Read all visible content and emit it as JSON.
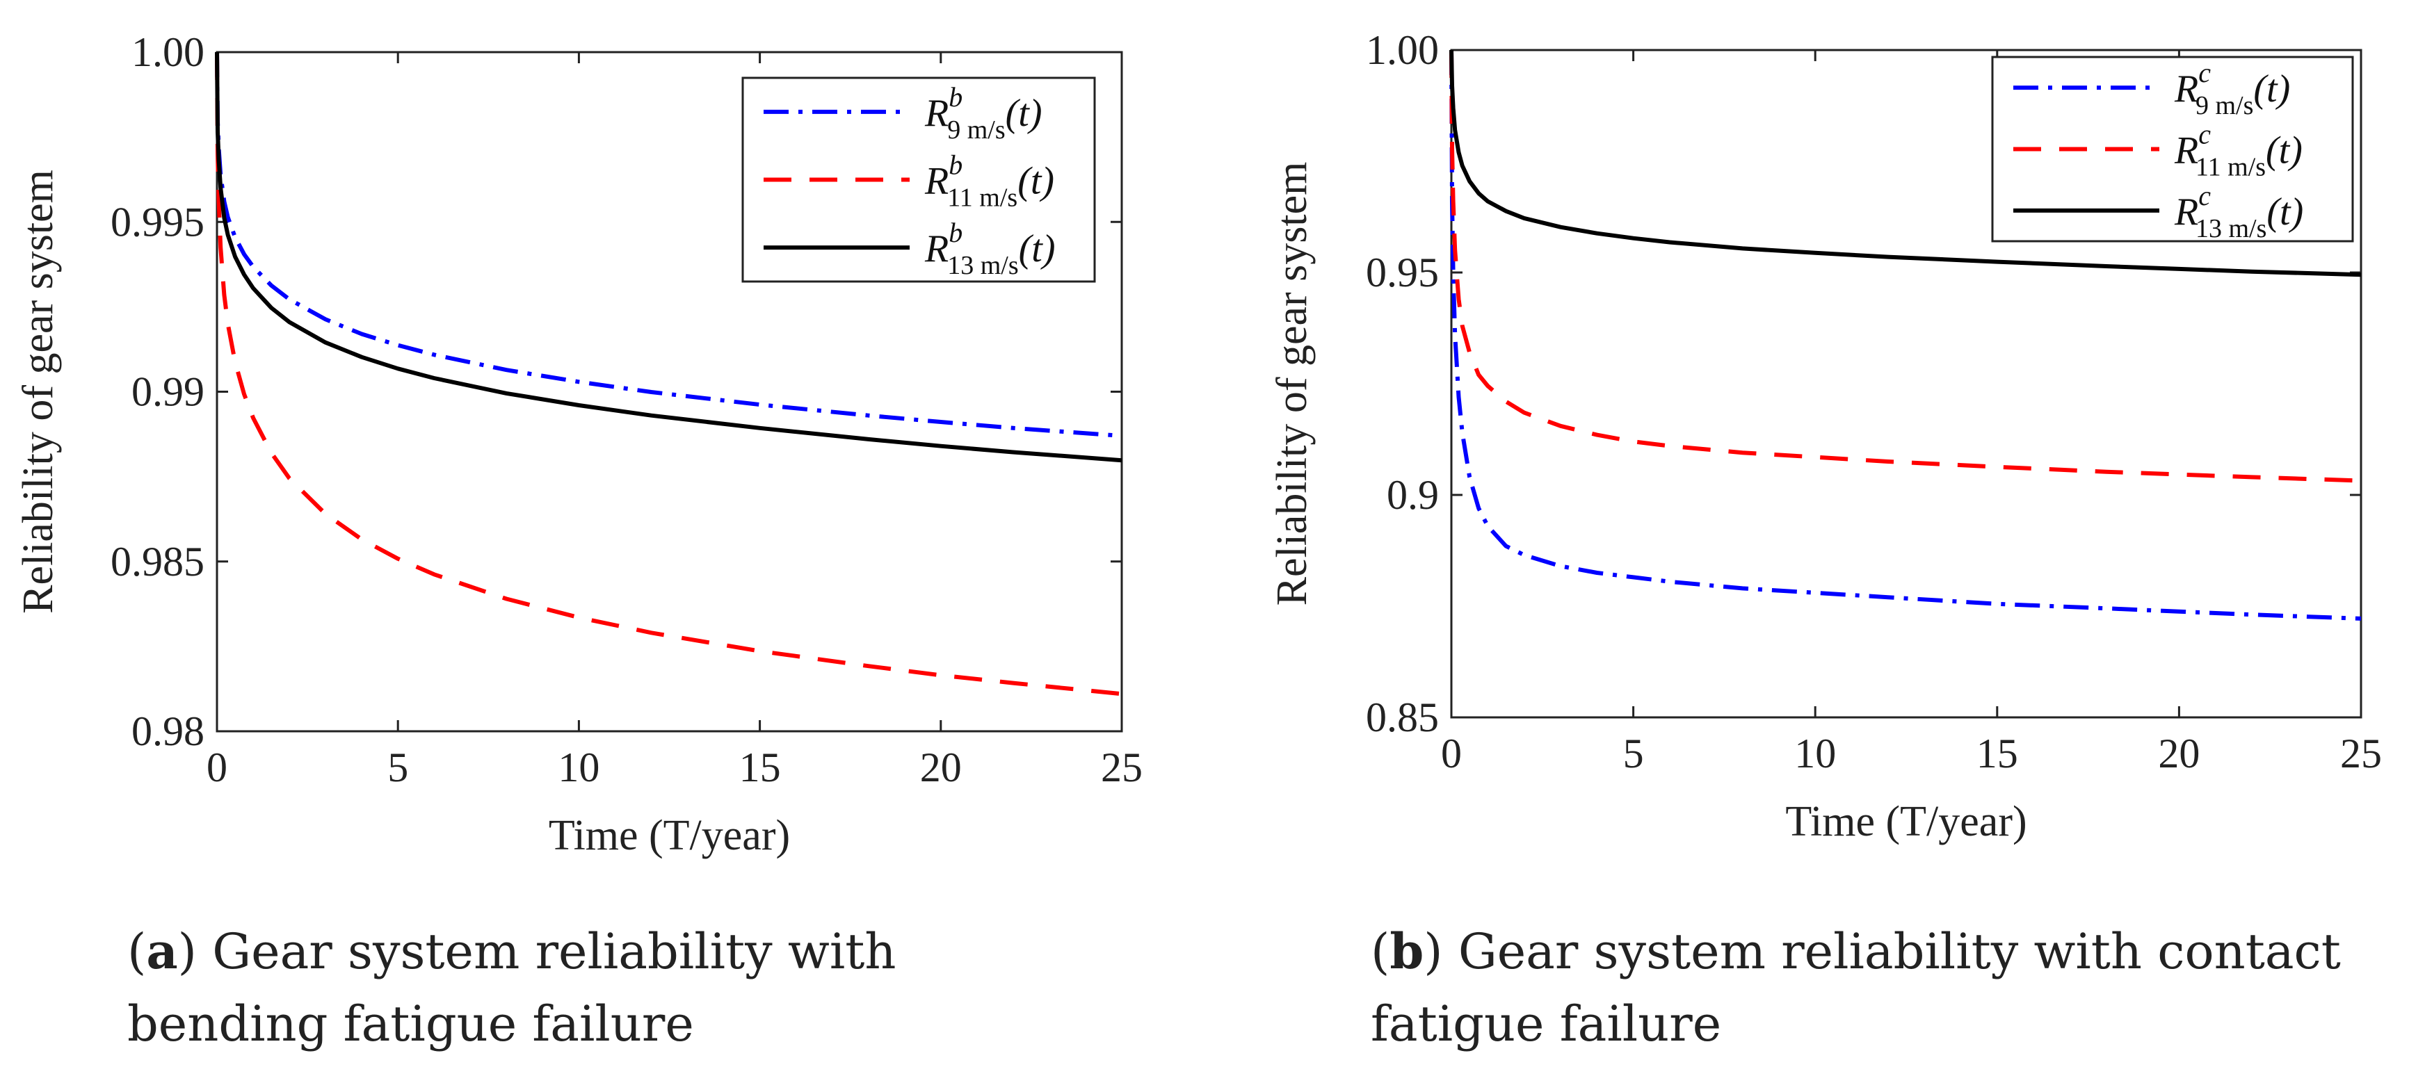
{
  "chart_data": [
    {
      "type": "line",
      "panel": "a",
      "caption_label": "a",
      "caption_text": "Gear system reliability with bending fatigue failure",
      "xlabel": "Time (T/year)",
      "ylabel": "Reliability of gear system",
      "xlim": [
        0,
        25
      ],
      "ylim": [
        0.98,
        1.0
      ],
      "xticks": [
        "0",
        "5",
        "10",
        "15",
        "20",
        "25"
      ],
      "yticks": [
        "0.98",
        "0.985",
        "0.99",
        "0.995",
        "1.00"
      ],
      "legend_position": "top-right",
      "x": [
        0,
        0.02,
        0.05,
        0.1,
        0.2,
        0.3,
        0.5,
        0.75,
        1,
        1.5,
        2,
        3,
        4,
        5,
        6,
        8,
        10,
        12,
        15,
        18,
        20,
        22,
        25
      ],
      "series": [
        {
          "name": "R^b_{9 m/s}(t)",
          "base": "R",
          "sup": "b",
          "sub": "9 m/s",
          "arg": "(t)",
          "color": "#0000ff",
          "dash": "36,14,6,14",
          "values": [
            1.0,
            0.99795,
            0.99715,
            0.99638,
            0.9956,
            0.99514,
            0.99455,
            0.99405,
            0.99368,
            0.99313,
            0.99272,
            0.99213,
            0.9917,
            0.99137,
            0.99109,
            0.99064,
            0.99029,
            0.98999,
            0.98962,
            0.9893,
            0.98911,
            0.98893,
            0.9887
          ]
        },
        {
          "name": "R^b_{11 m/s}(t)",
          "base": "R",
          "sup": "b",
          "sub": "11 m/s",
          "arg": "(t)",
          "color": "#ff0000",
          "dash": "40,26",
          "values": [
            1.0,
            0.997,
            0.9956,
            0.99425,
            0.99285,
            0.992,
            0.99088,
            0.98993,
            0.98923,
            0.9882,
            0.98745,
            0.9864,
            0.98565,
            0.98508,
            0.98462,
            0.9839,
            0.98335,
            0.9829,
            0.98236,
            0.98192,
            0.98165,
            0.98142,
            0.9811
          ]
        },
        {
          "name": "R^b_{13 m/s}(t)",
          "base": "R",
          "sup": "b",
          "sub": "13 m/s",
          "arg": "(t)",
          "color": "#000000",
          "dash": "",
          "values": [
            1.0,
            0.99765,
            0.9968,
            0.996,
            0.99512,
            0.99462,
            0.99398,
            0.99345,
            0.99305,
            0.99247,
            0.99205,
            0.99145,
            0.99102,
            0.99068,
            0.9904,
            0.98995,
            0.9896,
            0.9893,
            0.98893,
            0.9886,
            0.9884,
            0.98822,
            0.98798
          ]
        }
      ]
    },
    {
      "type": "line",
      "panel": "b",
      "caption_label": "b",
      "caption_text": "Gear system reliability with contact fatigue failure",
      "xlabel": "Time (T/year)",
      "ylabel": "Reliability of gear system",
      "xlim": [
        0,
        25
      ],
      "ylim": [
        0.85,
        1.0
      ],
      "xticks": [
        "0",
        "5",
        "10",
        "15",
        "20",
        "25"
      ],
      "yticks": [
        "0.85",
        "0.9",
        "0.95",
        "1.00"
      ],
      "legend_position": "top-right",
      "x": [
        0,
        0.02,
        0.05,
        0.1,
        0.2,
        0.3,
        0.5,
        0.75,
        1,
        1.5,
        2,
        3,
        4,
        5,
        6,
        8,
        10,
        12,
        15,
        18,
        20,
        22,
        25
      ],
      "series": [
        {
          "name": "R^c_{9 m/s}(t)",
          "base": "R",
          "sup": "c",
          "sub": "9 m/s",
          "arg": "(t)",
          "color": "#0000ff",
          "dash": "36,14,6,14",
          "values": [
            1.0,
            0.966,
            0.95,
            0.936,
            0.922,
            0.914,
            0.904,
            0.897,
            0.893,
            0.8885,
            0.8865,
            0.884,
            0.8825,
            0.8815,
            0.8805,
            0.879,
            0.878,
            0.877,
            0.8755,
            0.8745,
            0.8738,
            0.8731,
            0.8722
          ]
        },
        {
          "name": "R^c_{11 m/s}(t)",
          "base": "R",
          "sup": "c",
          "sub": "11 m/s",
          "arg": "(t)",
          "color": "#ff0000",
          "dash": "40,26",
          "values": [
            1.0,
            0.978,
            0.966,
            0.955,
            0.944,
            0.938,
            0.932,
            0.927,
            0.9245,
            0.921,
            0.9185,
            0.9155,
            0.9135,
            0.912,
            0.911,
            0.9095,
            0.9085,
            0.9075,
            0.9063,
            0.9052,
            0.9046,
            0.904,
            0.9032
          ]
        },
        {
          "name": "R^c_{13 m/s}(t)",
          "base": "R",
          "sup": "c",
          "sub": "13 m/s",
          "arg": "(t)",
          "color": "#000000",
          "dash": "",
          "values": [
            1.0,
            0.992,
            0.987,
            0.982,
            0.977,
            0.974,
            0.9705,
            0.9678,
            0.966,
            0.9638,
            0.9622,
            0.9602,
            0.9588,
            0.9577,
            0.9568,
            0.9554,
            0.9544,
            0.9535,
            0.9524,
            0.9514,
            0.9508,
            0.9502,
            0.9495
          ]
        }
      ]
    }
  ]
}
